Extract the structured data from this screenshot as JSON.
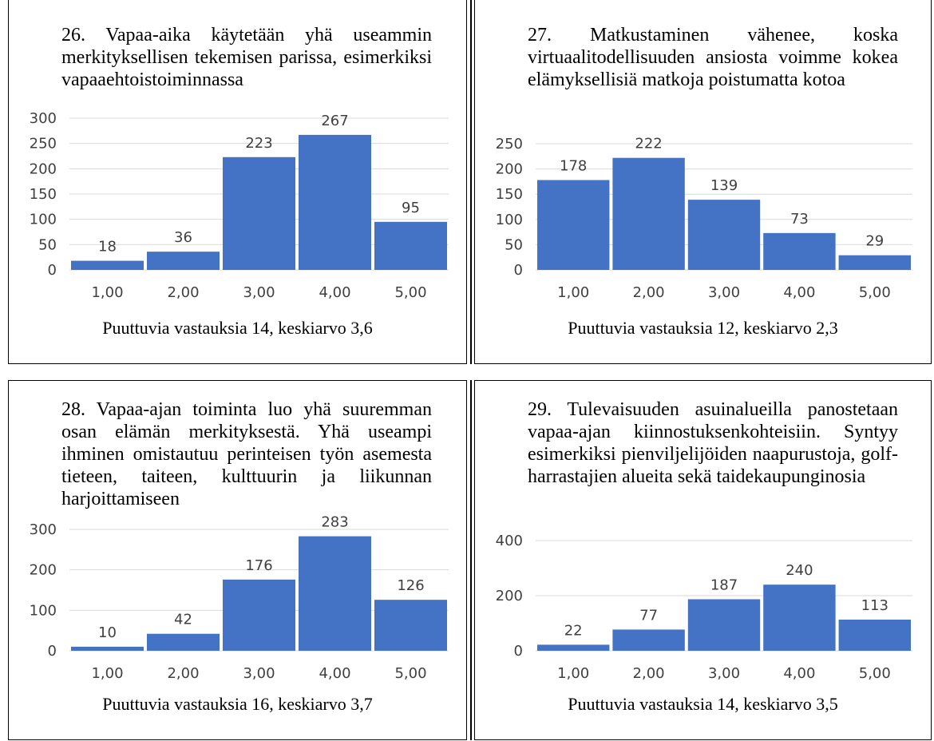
{
  "colors": {
    "bar": "#4472C4",
    "grid": "#d9d9d9",
    "text": "#404040"
  },
  "chart_data": [
    {
      "type": "bar",
      "title": "26. Vapaa-aika käytetään yhä useammin merkityksellisen tekemisen parissa, esimerkiksi vapaaehtoistoiminnassa",
      "categories": [
        "1,00",
        "2,00",
        "3,00",
        "4,00",
        "5,00"
      ],
      "values": [
        18,
        36,
        223,
        267,
        95
      ],
      "ylim": [
        0,
        300
      ],
      "yticks": [
        0,
        50,
        100,
        150,
        200,
        250,
        300
      ],
      "xlabel": "Puuttuvia vastauksia 14, keskiarvo 3,6",
      "grid": true
    },
    {
      "type": "bar",
      "title": "27. Matkustaminen vähenee, koska virtuaalitodellisuuden ansiosta voimme kokea elämyksellisiä matkoja poistumatta kotoa",
      "categories": [
        "1,00",
        "2,00",
        "3,00",
        "4,00",
        "5,00"
      ],
      "values": [
        178,
        222,
        139,
        73,
        29
      ],
      "ylim": [
        0,
        250
      ],
      "yticks": [
        0,
        50,
        100,
        150,
        200,
        250
      ],
      "xlabel": "Puuttuvia vastauksia 12, keskiarvo 2,3",
      "grid": true
    },
    {
      "type": "bar",
      "title": "28. Vapaa-ajan toiminta luo yhä suuremman osan elämän merkityksestä. Yhä useampi ihminen omistautuu perinteisen työn asemesta tieteen, taiteen, kulttuurin ja liikunnan harjoittamiseen",
      "categories": [
        "1,00",
        "2,00",
        "3,00",
        "4,00",
        "5,00"
      ],
      "values": [
        10,
        42,
        176,
        283,
        126
      ],
      "ylim": [
        0,
        300
      ],
      "yticks": [
        0,
        100,
        200,
        300
      ],
      "xlabel": "Puuttuvia vastauksia 16, keskiarvo 3,7",
      "grid": true
    },
    {
      "type": "bar",
      "title": "29. Tulevaisuuden asuinalueilla panostetaan vapaa-ajan kiinnostuksenkohteisiin. Syntyy esimerkiksi pienviljelijöiden naapurustoja, golf-harrastajien alueita sekä taidekaupunginosia",
      "categories": [
        "1,00",
        "2,00",
        "3,00",
        "4,00",
        "5,00"
      ],
      "values": [
        22,
        77,
        187,
        240,
        113
      ],
      "ylim": [
        0,
        400
      ],
      "yticks": [
        0,
        200,
        400
      ],
      "xlabel": "Puuttuvia vastauksia 14, keskiarvo 3,5",
      "grid": true
    }
  ]
}
